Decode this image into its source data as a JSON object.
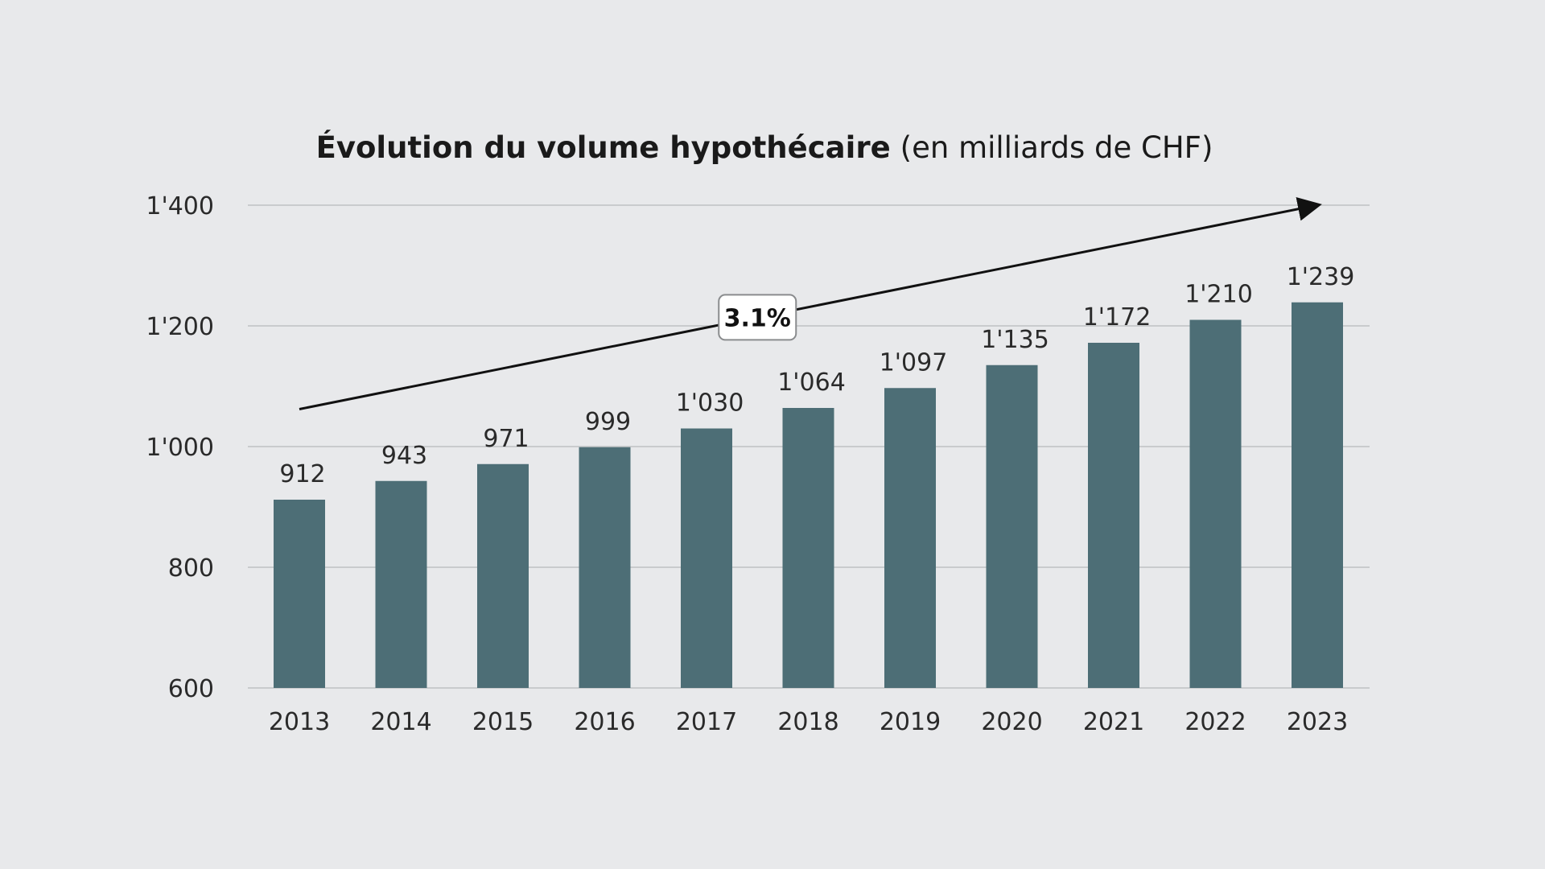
{
  "chart_data": {
    "type": "bar",
    "title": "Évolution du volume hypothécaire",
    "subtitle": "(en milliards de CHF)",
    "xlabel": "",
    "ylabel": "",
    "categories": [
      "2013",
      "2014",
      "2015",
      "2016",
      "2017",
      "2018",
      "2019",
      "2020",
      "2021",
      "2022",
      "2023"
    ],
    "values": [
      912,
      943,
      971,
      999,
      1030,
      1064,
      1097,
      1135,
      1172,
      1210,
      1239
    ],
    "value_labels": [
      "912",
      "943",
      "971",
      "999",
      "1'030",
      "1'064",
      "1'097",
      "1'135",
      "1'172",
      "1'210",
      "1'239"
    ],
    "ylim": [
      600,
      1400
    ],
    "yticks": [
      600,
      800,
      1000,
      1200,
      1400
    ],
    "ytick_labels": [
      "600",
      "800",
      "1'000",
      "1'200",
      "1'400"
    ],
    "grid": true,
    "legend": "none",
    "annotation": {
      "type": "trend-arrow",
      "label": "3.1%",
      "from": {
        "category": "2013",
        "value": 1062
      },
      "to": {
        "category": "2023",
        "value": 1400
      }
    },
    "colors": {
      "background": "#e8e9eb",
      "bar": "#4d6e76",
      "grid": "#c9cbcd",
      "text": "#2a2a2a",
      "arrow": "#111111"
    }
  }
}
